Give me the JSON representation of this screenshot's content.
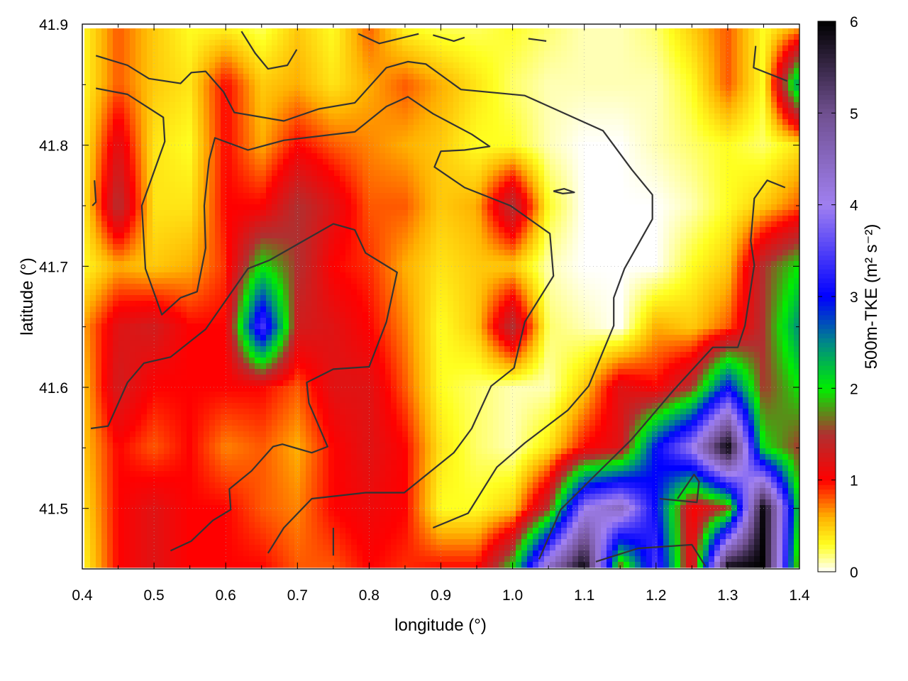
{
  "chart_data": {
    "type": "heatmap",
    "title": "",
    "xlabel": "longitude (°)",
    "ylabel": "latitude (°)",
    "colorbar_label": "500m-TKE (m² s⁻²)",
    "xlim": [
      0.4,
      1.4
    ],
    "ylim": [
      41.45,
      41.9
    ],
    "zlim": [
      0,
      6
    ],
    "grid": true,
    "xticks": [
      "0.4",
      "0.5",
      "0.6",
      "0.7",
      "0.8",
      "0.9",
      "1.0",
      "1.1",
      "1.2",
      "1.3",
      "1.4"
    ],
    "yticks": [
      "41.5",
      "41.6",
      "41.7",
      "41.8",
      "41.9"
    ],
    "cbticks": [
      "0",
      "1",
      "2",
      "3",
      "4",
      "5",
      "6"
    ],
    "colormap": [
      [
        0,
        "#ffffff"
      ],
      [
        0.3,
        "#ffff20"
      ],
      [
        0.6,
        "#ffb000"
      ],
      [
        1.0,
        "#ff0000"
      ],
      [
        1.5,
        "#b03030"
      ],
      [
        2.0,
        "#00ee00"
      ],
      [
        2.5,
        "#008888"
      ],
      [
        3.0,
        "#0000ff"
      ],
      [
        4.0,
        "#a080f0"
      ],
      [
        5.0,
        "#705090"
      ],
      [
        6.0,
        "#000000"
      ]
    ],
    "grid_lon": [
      0.4,
      0.45,
      0.5,
      0.55,
      0.6,
      0.65,
      0.7,
      0.75,
      0.8,
      0.85,
      0.9,
      0.95,
      1.0,
      1.05,
      1.1,
      1.15,
      1.2,
      1.25,
      1.3,
      1.35,
      1.4
    ],
    "grid_lat": [
      41.9,
      41.85,
      41.8,
      41.75,
      41.7,
      41.65,
      41.6,
      41.55,
      41.5,
      41.45
    ],
    "tke": [
      [
        0.3,
        0.8,
        0.5,
        0.3,
        0.3,
        0.2,
        0.5,
        0.3,
        0.8,
        0.3,
        0.2,
        0.2,
        0.3,
        0.2,
        0.1,
        0.1,
        0.2,
        0.5,
        0.8,
        0.3,
        0.5
      ],
      [
        0.3,
        0.8,
        0.5,
        0.4,
        1.0,
        0.5,
        0.6,
        0.4,
        0.6,
        0.8,
        0.6,
        0.4,
        0.2,
        0.1,
        0.1,
        0.1,
        0.1,
        0.3,
        0.8,
        0.3,
        2.5
      ],
      [
        0.3,
        1.2,
        0.4,
        0.3,
        1.0,
        0.6,
        1.0,
        0.8,
        0.7,
        0.6,
        0.5,
        0.3,
        0.3,
        0.1,
        0.0,
        0.0,
        0.1,
        0.2,
        0.3,
        0.2,
        0.4
      ],
      [
        0.3,
        1.5,
        0.4,
        0.4,
        1.0,
        1.0,
        1.5,
        1.2,
        0.8,
        0.8,
        0.5,
        0.6,
        1.5,
        0.3,
        0.0,
        0.0,
        0.0,
        0.1,
        0.3,
        0.5,
        0.8
      ],
      [
        0.3,
        0.6,
        0.5,
        0.6,
        0.9,
        2.0,
        1.5,
        1.0,
        0.9,
        0.6,
        0.4,
        0.5,
        0.5,
        0.1,
        0.0,
        0.0,
        0.0,
        0.3,
        0.5,
        1.5,
        2.0
      ],
      [
        0.6,
        1.2,
        1.3,
        1.0,
        1.0,
        3.5,
        1.3,
        1.2,
        1.0,
        0.7,
        0.3,
        0.5,
        1.5,
        0.2,
        0.1,
        0.0,
        0.6,
        0.5,
        0.8,
        1.5,
        2.5
      ],
      [
        0.5,
        1.3,
        1.0,
        1.0,
        1.0,
        1.0,
        0.8,
        1.2,
        1.2,
        0.8,
        0.3,
        0.2,
        0.1,
        0.1,
        0.5,
        1.2,
        1.0,
        1.5,
        3.0,
        1.5,
        2.0
      ],
      [
        0.5,
        1.0,
        0.8,
        1.0,
        0.7,
        0.8,
        0.6,
        1.0,
        1.2,
        1.0,
        0.4,
        0.2,
        0.1,
        0.4,
        1.0,
        1.2,
        3.0,
        4.0,
        6.0,
        2.0,
        1.5
      ],
      [
        0.4,
        1.0,
        1.2,
        1.0,
        1.0,
        0.8,
        0.7,
        1.0,
        1.1,
        1.0,
        0.3,
        0.3,
        0.5,
        1.5,
        4.0,
        4.5,
        3.0,
        1.0,
        1.5,
        6.0,
        2.0
      ],
      [
        0.3,
        1.0,
        1.2,
        1.0,
        1.0,
        1.0,
        0.8,
        0.8,
        1.0,
        0.9,
        1.0,
        1.0,
        2.0,
        4.5,
        6.0,
        1.5,
        3.5,
        1.0,
        6.0,
        6.0,
        1.5
      ]
    ],
    "contour_color": "#333333",
    "contours": [
      [
        [
          0.419,
          41.874
        ],
        [
          0.463,
          41.866
        ],
        [
          0.493,
          41.855
        ],
        [
          0.537,
          41.851
        ],
        [
          0.552,
          41.86
        ],
        [
          0.572,
          41.861
        ],
        [
          0.597,
          41.844
        ],
        [
          0.612,
          41.827
        ],
        [
          0.681,
          41.82
        ],
        [
          0.73,
          41.83
        ],
        [
          0.78,
          41.835
        ],
        [
          0.824,
          41.864
        ],
        [
          0.854,
          41.869
        ],
        [
          0.879,
          41.867
        ],
        [
          0.928,
          41.846
        ],
        [
          1.017,
          41.841
        ],
        [
          1.126,
          41.812
        ],
        [
          1.166,
          41.78
        ],
        [
          1.195,
          41.759
        ],
        [
          1.195,
          41.739
        ],
        [
          1.156,
          41.698
        ],
        [
          1.141,
          41.674
        ],
        [
          1.141,
          41.651
        ],
        [
          1.106,
          41.601
        ],
        [
          1.077,
          41.581
        ],
        [
          1.017,
          41.554
        ],
        [
          0.978,
          41.534
        ],
        [
          0.938,
          41.496
        ],
        [
          0.889,
          41.484
        ]
      ],
      [
        [
          0.419,
          41.847
        ],
        [
          0.463,
          41.842
        ],
        [
          0.513,
          41.823
        ],
        [
          0.515,
          41.803
        ],
        [
          0.483,
          41.75
        ],
        [
          0.488,
          41.698
        ],
        [
          0.511,
          41.66
        ],
        [
          0.537,
          41.674
        ],
        [
          0.56,
          41.679
        ],
        [
          0.572,
          41.715
        ],
        [
          0.57,
          41.75
        ],
        [
          0.577,
          41.788
        ],
        [
          0.585,
          41.806
        ],
        [
          0.631,
          41.796
        ],
        [
          0.681,
          41.804
        ],
        [
          0.78,
          41.811
        ],
        [
          0.824,
          41.832
        ],
        [
          0.854,
          41.84
        ],
        [
          0.889,
          41.826
        ],
        [
          0.943,
          41.809
        ],
        [
          0.968,
          41.799
        ],
        [
          0.933,
          41.796
        ],
        [
          0.9,
          41.795
        ],
        [
          0.891,
          41.782
        ],
        [
          0.933,
          41.765
        ],
        [
          0.997,
          41.75
        ],
        [
          1.052,
          41.727
        ],
        [
          1.057,
          41.692
        ],
        [
          1.017,
          41.654
        ],
        [
          1.002,
          41.616
        ],
        [
          0.97,
          41.601
        ],
        [
          0.943,
          41.566
        ],
        [
          0.918,
          41.546
        ],
        [
          0.849,
          41.513
        ],
        [
          0.795,
          41.513
        ],
        [
          0.72,
          41.508
        ],
        [
          0.681,
          41.484
        ],
        [
          0.659,
          41.463
        ]
      ],
      [
        [
          0.412,
          41.566
        ],
        [
          0.436,
          41.568
        ],
        [
          0.463,
          41.604
        ],
        [
          0.486,
          41.62
        ],
        [
          0.523,
          41.625
        ],
        [
          0.572,
          41.648
        ],
        [
          0.631,
          41.698
        ],
        [
          0.661,
          41.705
        ],
        [
          0.75,
          41.735
        ],
        [
          0.78,
          41.73
        ],
        [
          0.795,
          41.711
        ],
        [
          0.839,
          41.695
        ],
        [
          0.824,
          41.654
        ],
        [
          0.8,
          41.617
        ],
        [
          0.75,
          41.615
        ],
        [
          0.713,
          41.604
        ],
        [
          0.716,
          41.587
        ],
        [
          0.742,
          41.551
        ],
        [
          0.72,
          41.546
        ],
        [
          0.679,
          41.553
        ],
        [
          0.666,
          41.551
        ],
        [
          0.636,
          41.531
        ],
        [
          0.605,
          41.516
        ],
        [
          0.607,
          41.499
        ],
        [
          0.582,
          41.49
        ],
        [
          0.552,
          41.473
        ],
        [
          0.523,
          41.465
        ]
      ],
      [
        [
          1.38,
          41.765
        ],
        [
          1.355,
          41.771
        ],
        [
          1.337,
          41.756
        ],
        [
          1.332,
          41.721
        ],
        [
          1.337,
          41.701
        ],
        [
          1.324,
          41.651
        ],
        [
          1.314,
          41.633
        ],
        [
          1.279,
          41.633
        ],
        [
          1.225,
          41.598
        ],
        [
          1.166,
          41.557
        ],
        [
          1.106,
          41.522
        ],
        [
          1.067,
          41.499
        ],
        [
          1.037,
          41.458
        ]
      ],
      [
        [
          0.622,
          41.894
        ],
        [
          0.641,
          41.876
        ],
        [
          0.659,
          41.863
        ],
        [
          0.686,
          41.866
        ],
        [
          0.699,
          41.879
        ]
      ],
      [
        [
          0.785,
          41.892
        ],
        [
          0.814,
          41.884
        ],
        [
          0.869,
          41.892
        ]
      ],
      [
        [
          0.889,
          41.891
        ],
        [
          0.918,
          41.886
        ],
        [
          0.933,
          41.889
        ]
      ],
      [
        [
          1.022,
          41.888
        ],
        [
          1.047,
          41.886
        ]
      ],
      [
        [
          1.339,
          41.882
        ],
        [
          1.336,
          41.864
        ],
        [
          1.383,
          41.853
        ]
      ],
      [
        [
          1.057,
          41.762
        ],
        [
          1.072,
          41.764
        ],
        [
          1.086,
          41.761
        ],
        [
          1.07,
          41.76
        ],
        [
          1.057,
          41.762
        ]
      ],
      [
        [
          1.116,
          41.456
        ],
        [
          1.175,
          41.467
        ],
        [
          1.25,
          41.47
        ],
        [
          1.269,
          41.452
        ]
      ],
      [
        [
          1.23,
          41.508
        ],
        [
          1.253,
          41.528
        ],
        [
          1.26,
          41.522
        ],
        [
          1.257,
          41.505
        ],
        [
          1.205,
          41.508
        ]
      ],
      [
        [
          0.417,
          41.771
        ],
        [
          0.419,
          41.753
        ],
        [
          0.414,
          41.75
        ]
      ],
      [
        [
          0.75,
          41.484
        ],
        [
          0.75,
          41.461
        ]
      ]
    ]
  }
}
